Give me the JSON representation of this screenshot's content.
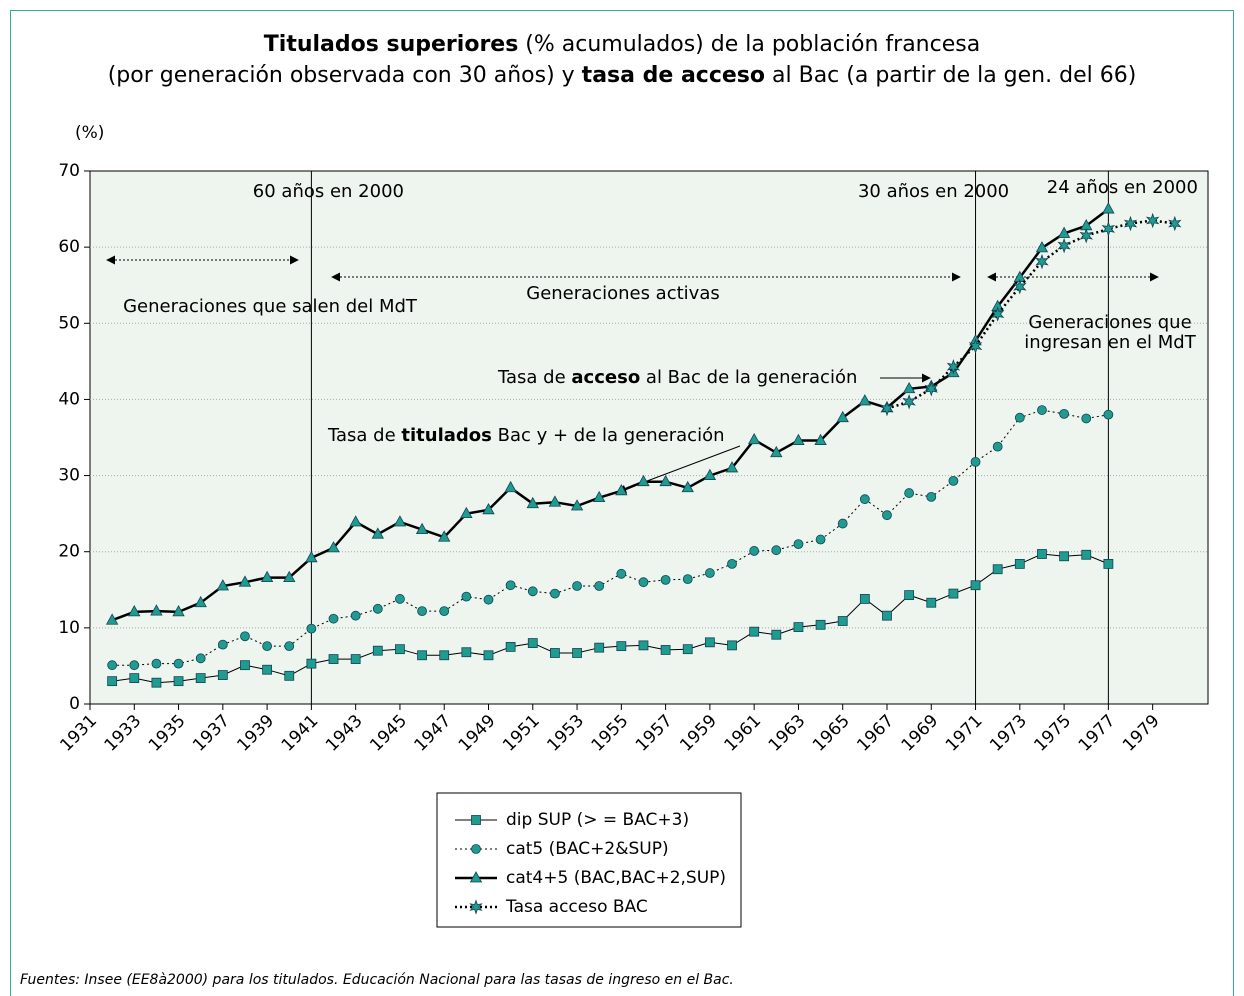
{
  "chart_data": {
    "type": "line",
    "title": [
      [
        {
          "text": "Titulados superiores",
          "bold": true
        },
        {
          "text": " (% acumulados) de la población francesa",
          "bold": false
        }
      ],
      [
        {
          "text": "(por generación observada con 30 años) y ",
          "bold": false
        },
        {
          "text": "tasa de acceso",
          "bold": true
        },
        {
          "text": " al Bac (a partir de la gen. del 66)",
          "bold": false
        }
      ]
    ],
    "ylabel": "(%)",
    "xlim": [
      1931,
      1981.5
    ],
    "xticks": [
      1931,
      1933,
      1935,
      1937,
      1939,
      1941,
      1943,
      1945,
      1947,
      1949,
      1951,
      1953,
      1955,
      1957,
      1959,
      1961,
      1963,
      1965,
      1967,
      1969,
      1971,
      1973,
      1975,
      1977,
      1979
    ],
    "ylim": [
      0,
      70
    ],
    "yticks": [
      0,
      10,
      20,
      30,
      40,
      50,
      60,
      70
    ],
    "grid": true,
    "series": [
      {
        "name": "dip SUP (> = BAC+3)",
        "color": "#1f9b8f",
        "line": "solid",
        "width": 1,
        "marker": "square",
        "x": [
          1932,
          1933,
          1934,
          1935,
          1936,
          1937,
          1938,
          1939,
          1940,
          1941,
          1942,
          1943,
          1944,
          1945,
          1946,
          1947,
          1948,
          1949,
          1950,
          1951,
          1952,
          1953,
          1954,
          1955,
          1956,
          1957,
          1958,
          1959,
          1960,
          1961,
          1962,
          1963,
          1964,
          1965,
          1966,
          1967,
          1968,
          1969,
          1970,
          1971,
          1972,
          1973,
          1974,
          1975,
          1976,
          1977
        ],
        "values": [
          3.0,
          3.4,
          2.8,
          3.0,
          3.4,
          3.8,
          5.1,
          4.5,
          3.7,
          5.3,
          5.9,
          5.9,
          7.0,
          7.2,
          6.4,
          6.4,
          6.8,
          6.4,
          7.5,
          8.0,
          6.7,
          6.7,
          7.4,
          7.6,
          7.7,
          7.1,
          7.2,
          8.1,
          7.7,
          9.5,
          9.1,
          10.1,
          10.4,
          10.9,
          13.8,
          11.6,
          14.3,
          13.3,
          14.5,
          15.6,
          17.7,
          18.4,
          19.7,
          19.4,
          19.6,
          18.4
        ]
      },
      {
        "name": "cat5 (BAC+2&SUP)",
        "color": "#1f9b8f",
        "line": "dotted",
        "width": 1,
        "marker": "circle",
        "x": [
          1932,
          1933,
          1934,
          1935,
          1936,
          1937,
          1938,
          1939,
          1940,
          1941,
          1942,
          1943,
          1944,
          1945,
          1946,
          1947,
          1948,
          1949,
          1950,
          1951,
          1952,
          1953,
          1954,
          1955,
          1956,
          1957,
          1958,
          1959,
          1960,
          1961,
          1962,
          1963,
          1964,
          1965,
          1966,
          1967,
          1968,
          1969,
          1970,
          1971,
          1972,
          1973,
          1974,
          1975,
          1976,
          1977
        ],
        "values": [
          5.1,
          5.1,
          5.3,
          5.3,
          6.0,
          7.8,
          8.9,
          7.6,
          7.6,
          9.9,
          11.2,
          11.6,
          12.5,
          13.8,
          12.2,
          12.2,
          14.1,
          13.7,
          15.6,
          14.8,
          14.5,
          15.5,
          15.5,
          17.1,
          16.0,
          16.3,
          16.4,
          17.2,
          18.4,
          20.1,
          20.2,
          21.0,
          21.6,
          23.7,
          26.9,
          24.8,
          27.7,
          27.2,
          29.3,
          31.8,
          33.8,
          37.6,
          38.6,
          38.1,
          37.5,
          38.0
        ]
      },
      {
        "name": "cat4+5 (BAC,BAC+2,SUP)",
        "color": "#1f9b8f",
        "line": "solid",
        "width": 2.5,
        "marker": "triangle",
        "x": [
          1932,
          1933,
          1934,
          1935,
          1936,
          1937,
          1938,
          1939,
          1940,
          1941,
          1942,
          1943,
          1944,
          1945,
          1946,
          1947,
          1948,
          1949,
          1950,
          1951,
          1952,
          1953,
          1954,
          1955,
          1956,
          1957,
          1958,
          1959,
          1960,
          1961,
          1962,
          1963,
          1964,
          1965,
          1966,
          1967,
          1968,
          1969,
          1970,
          1971,
          1972,
          1973,
          1974,
          1975,
          1976,
          1977
        ],
        "values": [
          11.0,
          12.1,
          12.2,
          12.1,
          13.3,
          15.5,
          16.0,
          16.6,
          16.6,
          19.2,
          20.5,
          23.9,
          22.3,
          23.9,
          22.9,
          21.9,
          25.0,
          25.5,
          28.4,
          26.3,
          26.5,
          26.0,
          27.1,
          28.0,
          29.2,
          29.2,
          28.4,
          30.0,
          31.0,
          34.7,
          33.0,
          34.6,
          34.6,
          37.6,
          39.8,
          38.9,
          41.4,
          41.7,
          43.5,
          47.7,
          52.2,
          56.0,
          59.9,
          61.8,
          62.8,
          65.0
        ]
      },
      {
        "name": "Tasa acceso BAC",
        "color": "#1f9b8f",
        "line": "dotted",
        "width": 2.5,
        "marker": "star",
        "x": [
          1967,
          1968,
          1969,
          1970,
          1971,
          1972,
          1973,
          1974,
          1975,
          1976,
          1977,
          1978,
          1979,
          1980
        ],
        "values": [
          38.8,
          39.7,
          41.4,
          44.3,
          47.0,
          51.2,
          54.8,
          58.1,
          60.2,
          61.5,
          62.4,
          63.1,
          63.5,
          63.1
        ]
      }
    ],
    "vlines": [
      {
        "x": 1941,
        "text": "60 años en 2000"
      },
      {
        "x": 1971,
        "text": "30 años en 2000"
      },
      {
        "x": 1977,
        "text": "24 años en 2000"
      }
    ],
    "regions": [
      [
        "Generaciones que salen del MdT"
      ],
      [
        "Generaciones activas"
      ],
      [
        "Generaciones que",
        "ingresan en el MdT"
      ]
    ],
    "callouts": [
      [
        {
          "text": "Tasa de ",
          "bold": false
        },
        {
          "text": "acceso",
          "bold": true
        },
        {
          "text": " al Bac de la generación",
          "bold": false
        }
      ],
      [
        {
          "text": "Tasa de ",
          "bold": false
        },
        {
          "text": "titulados",
          "bold": true
        },
        {
          "text": " Bac y + de la generación",
          "bold": false
        }
      ]
    ],
    "source": "Fuentes: Insee (EE8à2000) para los titulados. Educación Nacional para las tasas de ingreso en el Bac."
  }
}
